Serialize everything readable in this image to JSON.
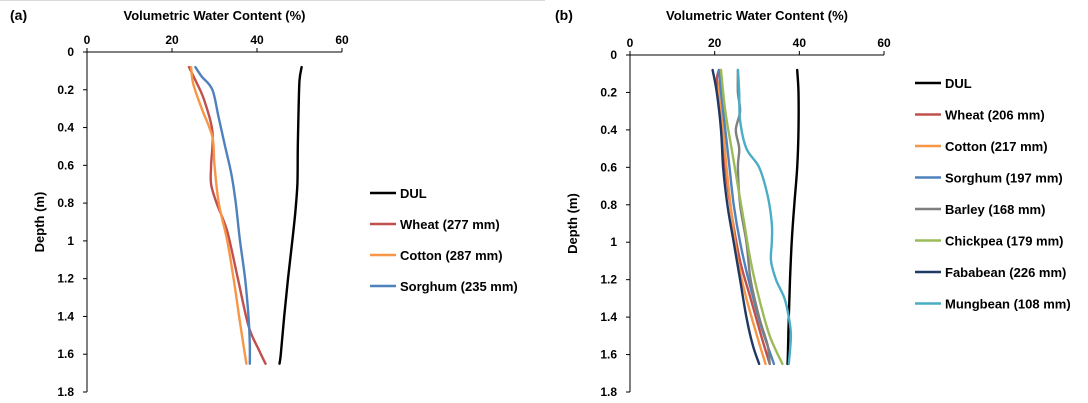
{
  "chart_data": [
    {
      "panel_label": "(a)",
      "type": "line",
      "xlabel": "Volumetric Water Content (%)",
      "ylabel": "Depth (m)",
      "xlim": [
        0,
        60
      ],
      "ylim": [
        0,
        1.8
      ],
      "x_ticks": [
        "0",
        "20",
        "40",
        "60"
      ],
      "y_ticks": [
        "0",
        "0.2",
        "0.4",
        "0.6",
        "0.8",
        "1",
        "1.2",
        "1.4",
        "1.6",
        "1.8"
      ],
      "x_axis_position": "top",
      "y_reversed": true,
      "grid": false,
      "legend_position": "right",
      "series": [
        {
          "name": "DUL",
          "color": "#000000",
          "points": [
            [
              50.5,
              0.08
            ],
            [
              50,
              0.15
            ],
            [
              49.8,
              0.3
            ],
            [
              49.6,
              0.5
            ],
            [
              49.5,
              0.7
            ],
            [
              49,
              0.85
            ],
            [
              48.3,
              1.0
            ],
            [
              47.3,
              1.2
            ],
            [
              46.4,
              1.4
            ],
            [
              45.6,
              1.6
            ],
            [
              45.3,
              1.65
            ]
          ]
        },
        {
          "name": "Wheat (277 mm)",
          "color": "#c0504d",
          "points": [
            [
              24,
              0.08
            ],
            [
              25.5,
              0.15
            ],
            [
              27.5,
              0.25
            ],
            [
              29.5,
              0.42
            ],
            [
              29.2,
              0.6
            ],
            [
              29.2,
              0.7
            ],
            [
              30.5,
              0.8
            ],
            [
              33,
              0.95
            ],
            [
              35.5,
              1.2
            ],
            [
              38,
              1.45
            ],
            [
              40.5,
              1.58
            ],
            [
              42,
              1.65
            ]
          ]
        },
        {
          "name": "Cotton (287 mm)",
          "color": "#f79646",
          "points": [
            [
              24.5,
              0.08
            ],
            [
              25,
              0.17
            ],
            [
              27,
              0.3
            ],
            [
              29.5,
              0.45
            ],
            [
              30,
              0.6
            ],
            [
              31,
              0.8
            ],
            [
              33,
              1.0
            ],
            [
              34.5,
              1.2
            ],
            [
              35.8,
              1.4
            ],
            [
              36.8,
              1.55
            ],
            [
              37.5,
              1.65
            ]
          ]
        },
        {
          "name": "Sorghum (235 mm)",
          "color": "#4f81bd",
          "points": [
            [
              25.5,
              0.08
            ],
            [
              27,
              0.13
            ],
            [
              29.5,
              0.2
            ],
            [
              31,
              0.35
            ],
            [
              32.5,
              0.5
            ],
            [
              34,
              0.65
            ],
            [
              35,
              0.8
            ],
            [
              36,
              1.0
            ],
            [
              37.2,
              1.2
            ],
            [
              38,
              1.4
            ],
            [
              38.3,
              1.55
            ],
            [
              38.3,
              1.65
            ]
          ]
        }
      ]
    },
    {
      "panel_label": "(b)",
      "type": "line",
      "xlabel": "Volumetric Water Content (%)",
      "ylabel": "Depth (m)",
      "xlim": [
        0,
        60
      ],
      "ylim": [
        0,
        1.8
      ],
      "x_ticks": [
        "0",
        "20",
        "40",
        "60"
      ],
      "y_ticks": [
        "0",
        "0.2",
        "0.4",
        "0.6",
        "0.8",
        "1",
        "1.2",
        "1.4",
        "1.6",
        "1.8"
      ],
      "x_axis_position": "top",
      "y_reversed": true,
      "grid": false,
      "legend_position": "right",
      "series": [
        {
          "name": "DUL",
          "color": "#000000",
          "points": [
            [
              39.5,
              0.08
            ],
            [
              39.8,
              0.2
            ],
            [
              39.8,
              0.4
            ],
            [
              39.5,
              0.6
            ],
            [
              38.8,
              0.8
            ],
            [
              38.2,
              1.0
            ],
            [
              37.8,
              1.2
            ],
            [
              37.5,
              1.4
            ],
            [
              37.3,
              1.6
            ],
            [
              37.2,
              1.65
            ]
          ]
        },
        {
          "name": "Wheat (206 mm)",
          "color": "#c0504d",
          "points": [
            [
              21,
              0.08
            ],
            [
              20.5,
              0.15
            ],
            [
              21.5,
              0.35
            ],
            [
              22.5,
              0.6
            ],
            [
              24,
              0.85
            ],
            [
              26,
              1.1
            ],
            [
              28.5,
              1.3
            ],
            [
              31,
              1.5
            ],
            [
              33,
              1.65
            ]
          ]
        },
        {
          "name": "Cotton (217 mm)",
          "color": "#f79646",
          "points": [
            [
              21.5,
              0.08
            ],
            [
              21,
              0.2
            ],
            [
              22,
              0.4
            ],
            [
              22.8,
              0.6
            ],
            [
              24,
              0.85
            ],
            [
              25.5,
              1.1
            ],
            [
              27.5,
              1.3
            ],
            [
              30,
              1.5
            ],
            [
              32,
              1.65
            ]
          ]
        },
        {
          "name": "Sorghum (197 mm)",
          "color": "#4f81bd",
          "points": [
            [
              21,
              0.08
            ],
            [
              21.5,
              0.2
            ],
            [
              22.5,
              0.4
            ],
            [
              23.5,
              0.6
            ],
            [
              24.5,
              0.8
            ],
            [
              26,
              1.0
            ],
            [
              28,
              1.2
            ],
            [
              31,
              1.45
            ],
            [
              34,
              1.65
            ]
          ]
        },
        {
          "name": "Barley (168 mm)",
          "color": "#7f7f7f",
          "points": [
            [
              25.5,
              0.08
            ],
            [
              25.5,
              0.2
            ],
            [
              26,
              0.3
            ],
            [
              25,
              0.4
            ],
            [
              25.8,
              0.5
            ],
            [
              25.5,
              0.6
            ],
            [
              26,
              0.8
            ],
            [
              27.5,
              1.0
            ],
            [
              28.5,
              1.2
            ],
            [
              30.5,
              1.4
            ],
            [
              32.5,
              1.55
            ],
            [
              33,
              1.65
            ]
          ]
        },
        {
          "name": "Chickpea (179 mm)",
          "color": "#9bbb59",
          "points": [
            [
              21.5,
              0.08
            ],
            [
              22.5,
              0.3
            ],
            [
              24,
              0.5
            ],
            [
              25.5,
              0.7
            ],
            [
              27,
              0.9
            ],
            [
              28.5,
              1.1
            ],
            [
              30.5,
              1.3
            ],
            [
              33,
              1.5
            ],
            [
              36,
              1.65
            ]
          ]
        },
        {
          "name": "Fababean (226 mm)",
          "color": "#1f3864",
          "points": [
            [
              19.5,
              0.08
            ],
            [
              20.5,
              0.2
            ],
            [
              21.5,
              0.4
            ],
            [
              22,
              0.6
            ],
            [
              23,
              0.8
            ],
            [
              24.5,
              1.0
            ],
            [
              26,
              1.2
            ],
            [
              27.5,
              1.4
            ],
            [
              29,
              1.55
            ],
            [
              30.5,
              1.65
            ]
          ]
        },
        {
          "name": "Mungbean (108 mm)",
          "color": "#4bacc6",
          "points": [
            [
              25.5,
              0.08
            ],
            [
              25.8,
              0.2
            ],
            [
              26,
              0.35
            ],
            [
              27.5,
              0.5
            ],
            [
              30.5,
              0.6
            ],
            [
              32.5,
              0.75
            ],
            [
              33.5,
              0.9
            ],
            [
              33.5,
              1.0
            ],
            [
              33.3,
              1.1
            ],
            [
              34.5,
              1.2
            ],
            [
              36.5,
              1.3
            ],
            [
              37.5,
              1.4
            ],
            [
              38,
              1.5
            ],
            [
              37.5,
              1.65
            ]
          ]
        }
      ]
    }
  ]
}
